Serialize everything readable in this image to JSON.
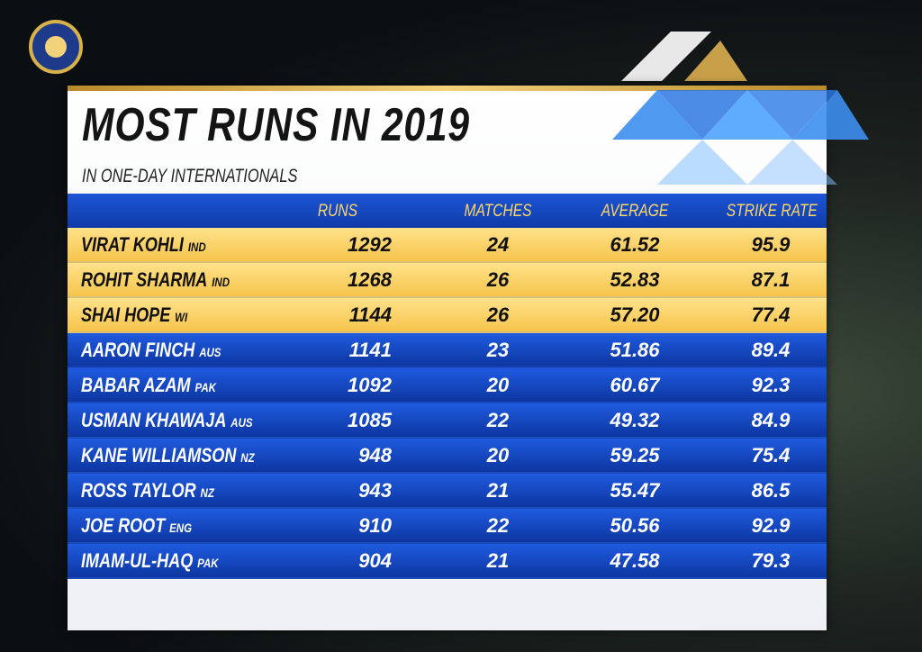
{
  "header": {
    "title": "MOST RUNS IN 2019",
    "subtitle": "IN ONE-DAY INTERNATIONALS"
  },
  "table": {
    "columns": [
      "RUNS",
      "MATCHES",
      "AVERAGE",
      "STRIKE RATE"
    ],
    "rows": [
      [
        "VIRAT KOHLI",
        "IND",
        "1292",
        "24",
        "61.52",
        "95.9"
      ],
      [
        "ROHIT SHARMA",
        "IND",
        "1268",
        "26",
        "52.83",
        "87.1"
      ],
      [
        "SHAI HOPE",
        "WI",
        "1144",
        "26",
        "57.20",
        "77.4"
      ],
      [
        "AARON FINCH",
        "AUS",
        "1141",
        "23",
        "51.86",
        "89.4"
      ],
      [
        "BABAR AZAM",
        "PAK",
        "1092",
        "20",
        "60.67",
        "92.3"
      ],
      [
        "USMAN KHAWAJA",
        "AUS",
        "1085",
        "22",
        "49.32",
        "84.9"
      ],
      [
        "KANE WILLIAMSON",
        "NZ",
        "948",
        "20",
        "59.25",
        "75.4"
      ],
      [
        "ROSS TAYLOR",
        "NZ",
        "943",
        "21",
        "55.47",
        "86.5"
      ],
      [
        "JOE ROOT",
        "ENG",
        "910",
        "22",
        "50.56",
        "92.9"
      ],
      [
        "IMAM-UL-HAQ",
        "PAK",
        "904",
        "21",
        "47.58",
        "79.3"
      ]
    ]
  }
}
